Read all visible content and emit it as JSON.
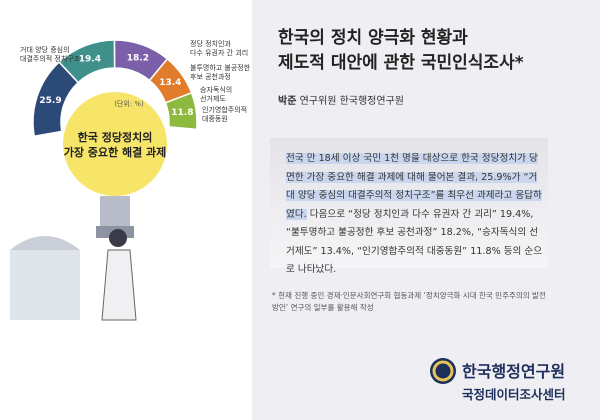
{
  "header": {
    "title": "한국의 정치 양극화 현황과\n제도적 대안에 관한 국민인식조사*",
    "author_name": "박준",
    "author_affiliation": "연구위원 한국행정연구원"
  },
  "chart_data": {
    "type": "donut",
    "title": "한국 정당정치의\n가장 중요한 해결 과제",
    "unit_note": "(단위: %)",
    "categories": [
      "거대 양당 중심의\n대결주의적 정치구조",
      "정당 정치인과\n다수 유권자 간 괴리",
      "불투명하고 불공정한\n후보 공천과정",
      "승자독식의\n선거제도",
      "인기영합주의적\n대중동원"
    ],
    "values": [
      25.9,
      19.4,
      18.2,
      13.4,
      11.8
    ],
    "colors": [
      "#2c4a78",
      "#3f8f8b",
      "#7b5fa8",
      "#e07c2b",
      "#8dba3e"
    ]
  },
  "body": {
    "highlight": "전국 만 18세 이상 국민 1천 명을 대상으로 한국 정당정치가 당면한 가장 중요한 해결 과제에 대해 물어본 결과, 25.9%가 “거대 양당 중심의 대결주의적 정치구조”를 최우선 과제라고 응답하였다.",
    "rest": " 다음으로 “정당 정치인과 다수 유권자 간 괴리” 19.4%, “불투명하고 불공정한 후보 공천과정” 18.2%, “승자독식의 선거제도” 13.4%, “인기영합주의적 대중동원” 11.8% 등의 순으로 나타났다."
  },
  "footnote": "* 현재 진행 중인 경제·인문사회연구회 협동과제 ‘정치양극화 시대 한국 민주주의의 발전 방안’ 연구의 일부를 활용해 작성",
  "footer": {
    "org": "한국행정연구원",
    "center": "국정데이터조사센터"
  }
}
